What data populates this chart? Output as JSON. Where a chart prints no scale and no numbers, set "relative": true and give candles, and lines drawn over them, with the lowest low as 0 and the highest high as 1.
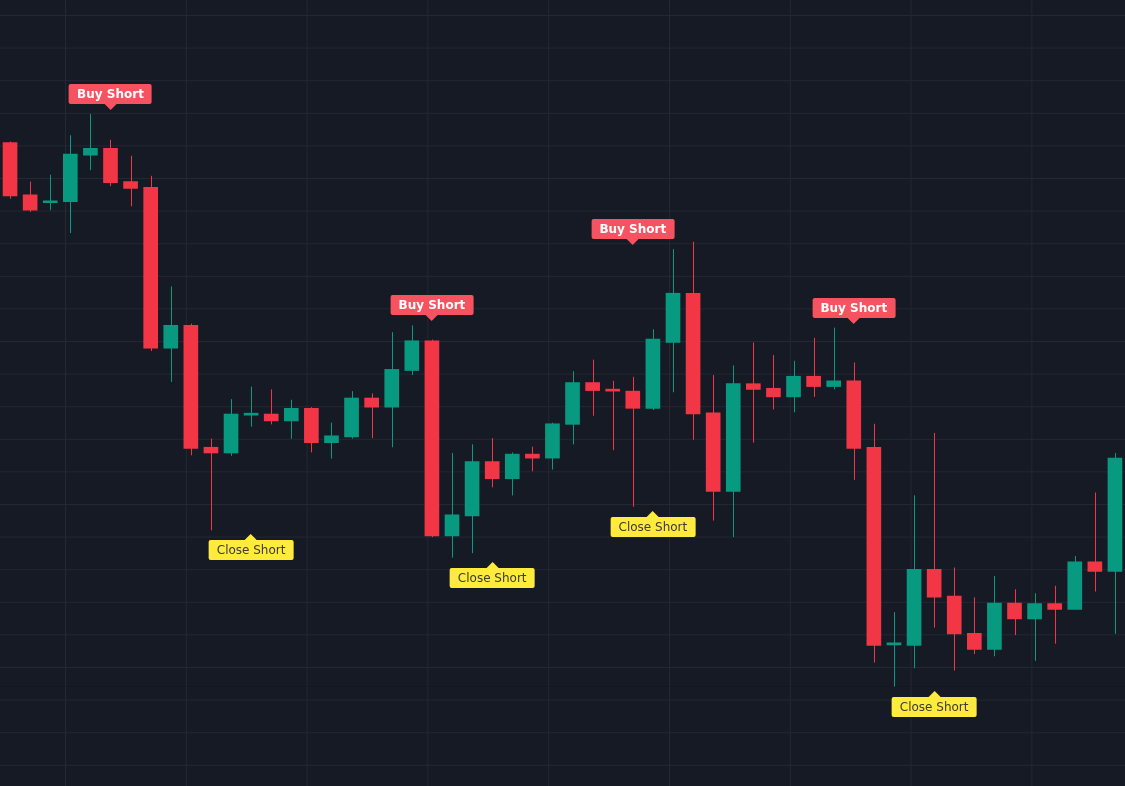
{
  "chart_data": {
    "type": "candlestick",
    "relative": true,
    "grid": true,
    "categories": [
      null,
      null,
      null,
      null,
      null,
      null,
      null,
      null,
      null,
      null,
      null,
      null,
      null,
      null,
      null,
      null,
      null,
      null,
      null,
      null,
      null,
      null,
      null,
      null,
      null,
      null,
      null,
      null,
      null,
      null,
      null,
      null,
      null,
      null,
      null,
      null,
      null,
      null,
      null,
      null,
      null,
      null,
      null,
      null,
      null,
      null,
      null,
      null,
      null,
      null,
      null,
      null,
      null,
      null,
      null,
      null
    ],
    "ohlc": [
      [
        0.95,
        0.952,
        0.852,
        0.857
      ],
      [
        0.859,
        0.882,
        0.829,
        0.832
      ],
      [
        0.845,
        0.894,
        0.832,
        0.847
      ],
      [
        0.847,
        0.963,
        0.792,
        0.93
      ],
      [
        0.928,
        1.0,
        0.902,
        0.94
      ],
      [
        0.94,
        0.955,
        0.874,
        0.88
      ],
      [
        0.882,
        0.927,
        0.839,
        0.87
      ],
      [
        0.872,
        0.892,
        0.586,
        0.591
      ],
      [
        0.591,
        0.699,
        0.532,
        0.631
      ],
      [
        0.631,
        0.634,
        0.404,
        0.416
      ],
      [
        0.418,
        0.433,
        0.273,
        0.408
      ],
      [
        0.408,
        0.502,
        0.403,
        0.476
      ],
      [
        0.474,
        0.524,
        0.454,
        0.476
      ],
      [
        0.476,
        0.519,
        0.458,
        0.464
      ],
      [
        0.464,
        0.501,
        0.433,
        0.486
      ],
      [
        0.486,
        0.488,
        0.409,
        0.426
      ],
      [
        0.426,
        0.461,
        0.398,
        0.438
      ],
      [
        0.436,
        0.516,
        0.433,
        0.504
      ],
      [
        0.504,
        0.512,
        0.434,
        0.488
      ],
      [
        0.488,
        0.619,
        0.418,
        0.554
      ],
      [
        0.552,
        0.631,
        0.544,
        0.604
      ],
      [
        0.604,
        0.606,
        0.261,
        0.263
      ],
      [
        0.263,
        0.408,
        0.225,
        0.3
      ],
      [
        0.298,
        0.423,
        0.233,
        0.393
      ],
      [
        0.393,
        0.434,
        0.348,
        0.363
      ],
      [
        0.363,
        0.409,
        0.334,
        0.406
      ],
      [
        0.406,
        0.419,
        0.376,
        0.399
      ],
      [
        0.399,
        0.461,
        0.379,
        0.459
      ],
      [
        0.458,
        0.551,
        0.423,
        0.531
      ],
      [
        0.531,
        0.571,
        0.473,
        0.517
      ],
      [
        0.519,
        0.534,
        0.413,
        0.516
      ],
      [
        0.516,
        0.541,
        0.314,
        0.486
      ],
      [
        0.486,
        0.624,
        0.483,
        0.607
      ],
      [
        0.601,
        0.764,
        0.514,
        0.687
      ],
      [
        0.687,
        0.777,
        0.431,
        0.476
      ],
      [
        0.478,
        0.544,
        0.29,
        0.341
      ],
      [
        0.341,
        0.561,
        0.261,
        0.529
      ],
      [
        0.529,
        0.601,
        0.426,
        0.519
      ],
      [
        0.521,
        0.579,
        0.484,
        0.506
      ],
      [
        0.506,
        0.569,
        0.479,
        0.542
      ],
      [
        0.542,
        0.609,
        0.506,
        0.524
      ],
      [
        0.524,
        0.627,
        0.519,
        0.534
      ],
      [
        0.534,
        0.566,
        0.361,
        0.416
      ],
      [
        0.418,
        0.459,
        0.042,
        0.072
      ],
      [
        0.073,
        0.13,
        0.0,
        0.075
      ],
      [
        0.072,
        0.334,
        0.032,
        0.205
      ],
      [
        0.205,
        0.443,
        0.103,
        0.156
      ],
      [
        0.158,
        0.208,
        0.028,
        0.092
      ],
      [
        0.093,
        0.156,
        0.057,
        0.065
      ],
      [
        0.065,
        0.193,
        0.053,
        0.146
      ],
      [
        0.146,
        0.17,
        0.09,
        0.118
      ],
      [
        0.118,
        0.163,
        0.045,
        0.145
      ],
      [
        0.145,
        0.176,
        0.075,
        0.135
      ],
      [
        0.135,
        0.228,
        0.135,
        0.218
      ],
      [
        0.218,
        0.339,
        0.166,
        0.201
      ],
      [
        0.201,
        0.408,
        0.092,
        0.399
      ]
    ],
    "colors": [
      "#f23645",
      "#f23645",
      "#089981",
      "#089981",
      "#089981",
      "#f23645",
      "#f23645",
      "#f23645",
      "#089981",
      "#f23645",
      "#f23645",
      "#089981",
      "#089981",
      "#f23645",
      "#089981",
      "#f23645",
      "#089981",
      "#089981",
      "#f23645",
      "#089981",
      "#089981",
      "#f23645",
      "#089981",
      "#089981",
      "#f23645",
      "#089981",
      "#f23645",
      "#089981",
      "#089981",
      "#f23645",
      "#f23645",
      "#f23645",
      "#089981",
      "#089981",
      "#f23645",
      "#f23645",
      "#089981",
      "#f23645",
      "#f23645",
      "#089981",
      "#f23645",
      "#089981",
      "#f23645",
      "#f23645",
      "#089981",
      "#089981",
      "#f23645",
      "#f23645",
      "#f23645",
      "#089981",
      "#f23645",
      "#089981",
      "#f23645",
      "#089981",
      "#f23645",
      "#089981"
    ],
    "annotations": [
      "Buy Short",
      "Close Short",
      "Buy Short",
      "Close Short",
      "Buy Short",
      "Close Short",
      "Buy Short",
      "Close Short"
    ]
  }
}
